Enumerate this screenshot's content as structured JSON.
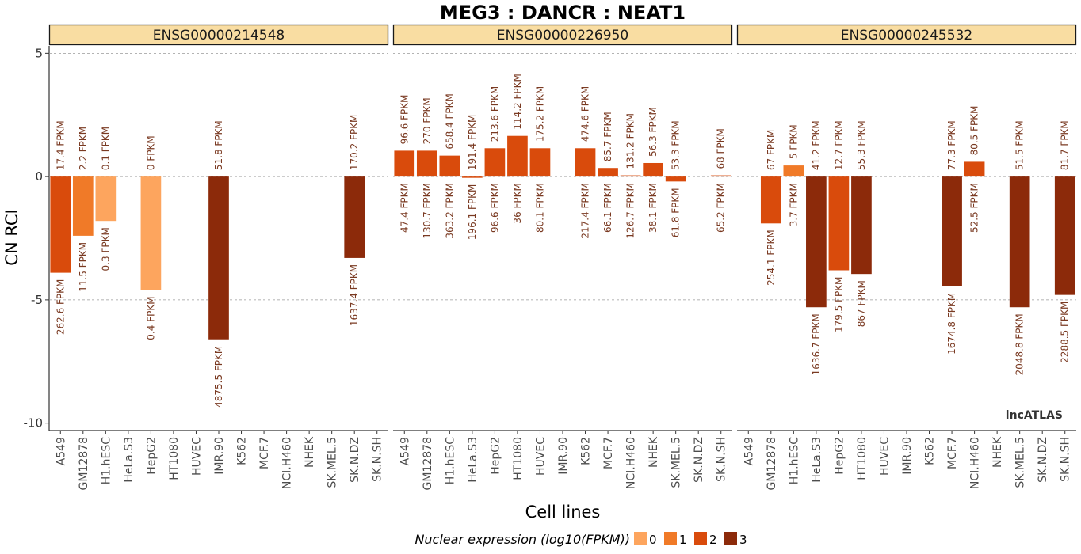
{
  "chart_data": {
    "type": "bar",
    "title": "MEG3 : DANCR : NEAT1",
    "xlabel": "Cell lines",
    "ylabel": "CN RCI",
    "ylim": [
      -10.3,
      5.3
    ],
    "yticks": [
      5,
      0,
      -5,
      -10
    ],
    "grid": "horizontal dashed",
    "watermark": "lncATLAS",
    "categories": [
      "A549",
      "GM12878",
      "H1.hESC",
      "HeLa.S3",
      "HepG2",
      "HT1080",
      "HUVEC",
      "IMR.90",
      "K562",
      "MCF.7",
      "NCI.H460",
      "NHEK",
      "SK.MEL.5",
      "SK.N.DZ",
      "SK.N.SH"
    ],
    "legend": {
      "title": "Nuclear expression (log10(FPKM))",
      "position": "bottom",
      "items": [
        {
          "label": "0",
          "color": "#FDA55E"
        },
        {
          "label": "1",
          "color": "#F07A28"
        },
        {
          "label": "2",
          "color": "#D94B0C"
        },
        {
          "label": "3",
          "color": "#8C2A0A"
        }
      ]
    },
    "panels": [
      {
        "name": "ENSG00000214548",
        "bars": [
          {
            "cell": "A549",
            "value": -3.9,
            "color_level": 2,
            "cytoplasm": "17.4 FPKM",
            "nucleus": "262.6 FPKM"
          },
          {
            "cell": "GM12878",
            "value": -2.4,
            "color_level": 1,
            "cytoplasm": "2.2 FPKM",
            "nucleus": "11.5 FPKM"
          },
          {
            "cell": "H1.hESC",
            "value": -1.8,
            "color_level": 0,
            "cytoplasm": "0.1 FPKM",
            "nucleus": "0.3 FPKM"
          },
          {
            "cell": "HepG2",
            "value": -4.6,
            "color_level": 0,
            "cytoplasm": "0 FPKM",
            "nucleus": "0.4 FPKM"
          },
          {
            "cell": "IMR.90",
            "value": -6.6,
            "color_level": 3,
            "cytoplasm": "51.8 FPKM",
            "nucleus": "4875.5 FPKM"
          },
          {
            "cell": "SK.N.DZ",
            "value": -3.3,
            "color_level": 3,
            "cytoplasm": "170.2 FPKM",
            "nucleus": "1637.4 FPKM"
          }
        ]
      },
      {
        "name": "ENSG00000226950",
        "bars": [
          {
            "cell": "A549",
            "value": 1.05,
            "color_level": 2,
            "cytoplasm": "96.6 FPKM",
            "nucleus": "47.4 FPKM"
          },
          {
            "cell": "GM12878",
            "value": 1.05,
            "color_level": 2,
            "cytoplasm": "270 FPKM",
            "nucleus": "130.7 FPKM"
          },
          {
            "cell": "H1.hESC",
            "value": 0.85,
            "color_level": 2,
            "cytoplasm": "658.4 FPKM",
            "nucleus": "363.2 FPKM"
          },
          {
            "cell": "HeLa.S3",
            "value": -0.05,
            "color_level": 2,
            "cytoplasm": "191.4 FPKM",
            "nucleus": "196.1 FPKM"
          },
          {
            "cell": "HepG2",
            "value": 1.15,
            "color_level": 2,
            "cytoplasm": "213.6 FPKM",
            "nucleus": "96.6 FPKM"
          },
          {
            "cell": "HT1080",
            "value": 1.65,
            "color_level": 2,
            "cytoplasm": "114.2 FPKM",
            "nucleus": "36 FPKM"
          },
          {
            "cell": "HUVEC",
            "value": 1.15,
            "color_level": 2,
            "cytoplasm": "175.2 FPKM",
            "nucleus": "80.1 FPKM"
          },
          {
            "cell": "K562",
            "value": 1.15,
            "color_level": 2,
            "cytoplasm": "474.6 FPKM",
            "nucleus": "217.4 FPKM"
          },
          {
            "cell": "MCF.7",
            "value": 0.35,
            "color_level": 2,
            "cytoplasm": "85.7 FPKM",
            "nucleus": "66.1 FPKM"
          },
          {
            "cell": "NCI.H460",
            "value": 0.05,
            "color_level": 2,
            "cytoplasm": "131.2 FPKM",
            "nucleus": "126.7 FPKM"
          },
          {
            "cell": "NHEK",
            "value": 0.55,
            "color_level": 2,
            "cytoplasm": "56.3 FPKM",
            "nucleus": "38.1 FPKM"
          },
          {
            "cell": "SK.MEL.5",
            "value": -0.2,
            "color_level": 2,
            "cytoplasm": "53.3 FPKM",
            "nucleus": "61.8 FPKM"
          },
          {
            "cell": "SK.N.SH",
            "value": 0.05,
            "color_level": 2,
            "cytoplasm": "68 FPKM",
            "nucleus": "65.2 FPKM"
          }
        ]
      },
      {
        "name": "ENSG00000245532",
        "bars": [
          {
            "cell": "GM12878",
            "value": -1.9,
            "color_level": 2,
            "cytoplasm": "67 FPKM",
            "nucleus": "254.1 FPKM"
          },
          {
            "cell": "H1.hESC",
            "value": 0.45,
            "color_level": 1,
            "cytoplasm": "5 FPKM",
            "nucleus": "3.7 FPKM"
          },
          {
            "cell": "HeLa.S3",
            "value": -5.3,
            "color_level": 3,
            "cytoplasm": "41.2 FPKM",
            "nucleus": "1636.7 FPKM"
          },
          {
            "cell": "HepG2",
            "value": -3.8,
            "color_level": 2,
            "cytoplasm": "12.7 FPKM",
            "nucleus": "179.5 FPKM"
          },
          {
            "cell": "HT1080",
            "value": -3.95,
            "color_level": 3,
            "cytoplasm": "55.3 FPKM",
            "nucleus": "867 FPKM"
          },
          {
            "cell": "MCF.7",
            "value": -4.45,
            "color_level": 3,
            "cytoplasm": "77.3 FPKM",
            "nucleus": "1674.8 FPKM"
          },
          {
            "cell": "NCI.H460",
            "value": 0.6,
            "color_level": 2,
            "cytoplasm": "80.5 FPKM",
            "nucleus": "52.5 FPKM"
          },
          {
            "cell": "SK.MEL.5",
            "value": -5.3,
            "color_level": 3,
            "cytoplasm": "51.5 FPKM",
            "nucleus": "2048.8 FPKM"
          },
          {
            "cell": "SK.N.SH",
            "value": -4.8,
            "color_level": 3,
            "cytoplasm": "81.7 FPKM",
            "nucleus": "2288.5 FPKM"
          }
        ]
      }
    ]
  }
}
